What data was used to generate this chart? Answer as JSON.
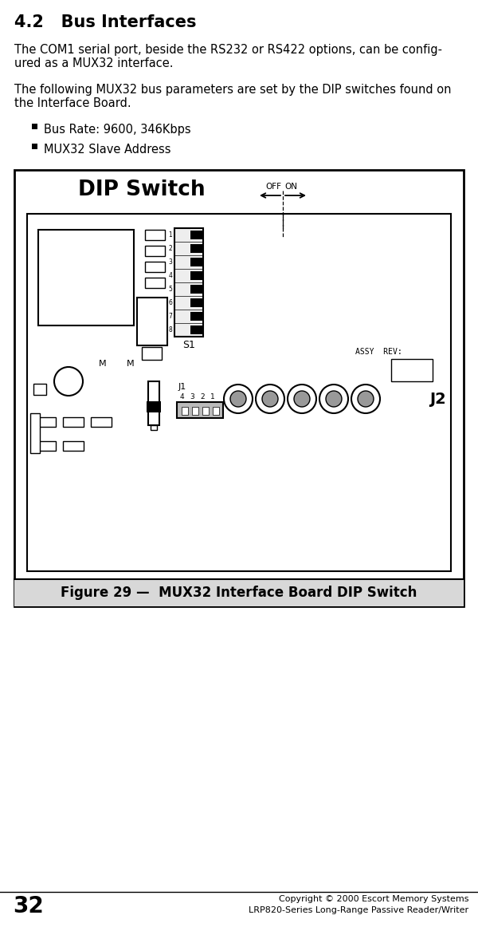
{
  "title": "4.2   Bus Interfaces",
  "para1_line1": "The COM1 serial port, beside the RS232 or RS422 options, can be config-",
  "para1_line2": "ured as a MUX32 interface.",
  "para2_line1": "The following MUX32 bus parameters are set by the DIP switches found on",
  "para2_line2": "the Interface Board.",
  "bullet1": "Bus Rate: 9600, 346Kbps",
  "bullet2": "MUX32 Slave Address",
  "figure_caption": "Figure 29 —  MUX32 Interface Board DIP Switch",
  "page_number": "32",
  "copyright_line1": "Copyright © 2000 Escort Memory Systems",
  "copyright_line2": "LRP820-Series Long-Range Passive Reader/Writer",
  "bg_color": "#ffffff",
  "caption_bg": "#d8d8d8"
}
